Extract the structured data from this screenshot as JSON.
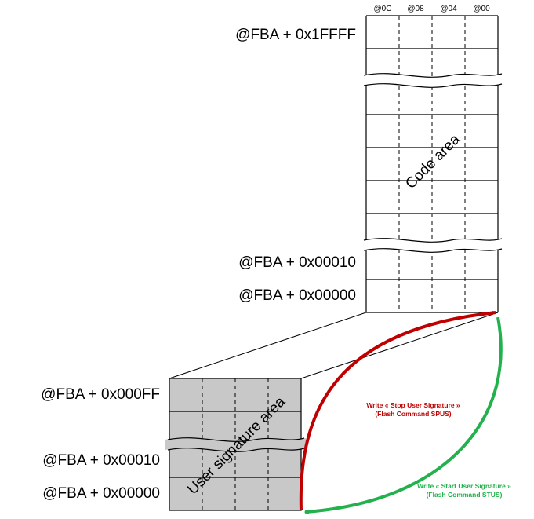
{
  "columns": [
    "@0C",
    "@08",
    "@04",
    "@00"
  ],
  "code_area": {
    "label": "Code area",
    "addresses": {
      "top": "@FBA + 0x1FFFF",
      "row1": "@FBA + 0x00010",
      "row0": "@FBA + 0x00000"
    }
  },
  "user_signature_area": {
    "label": "User signature area",
    "addresses": {
      "top": "@FBA + 0x000FF",
      "row1": "@FBA + 0x00010",
      "row0": "@FBA + 0x00000"
    }
  },
  "commands": {
    "stop": {
      "line1": "Write « Stop User Signature »",
      "line2": "(Flash Command SPUS)",
      "color": "#c00000"
    },
    "start": {
      "line1": "Write « Start User Signature »",
      "line2": "(Flash Command STUS)",
      "color": "#22b14c"
    }
  },
  "colors": {
    "signature_fill": "#c8c8c8"
  }
}
